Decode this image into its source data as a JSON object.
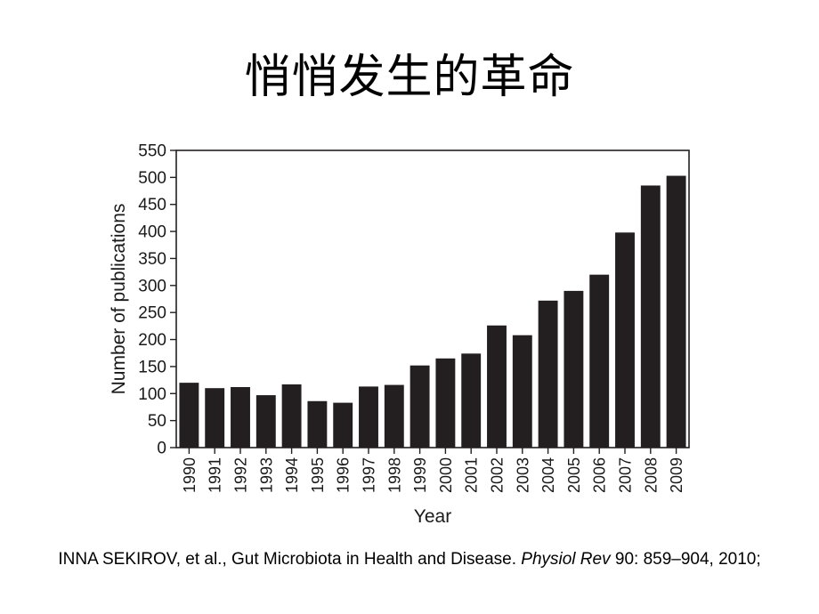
{
  "slide": {
    "title": "悄悄发生的革命"
  },
  "citation": {
    "prefix": "INNA SEKIROV, et al., Gut Microbiota in Health and Disease.",
    "journal": "Physiol Rev",
    "suffix": "90: 859–904, 2010;"
  },
  "colors": {
    "bar": "#231f20",
    "axis": "#231f20"
  },
  "chart_data": {
    "type": "bar",
    "title": "",
    "xlabel": "Year",
    "ylabel": "Number of publications",
    "ylim": [
      0,
      550
    ],
    "yticks": [
      0,
      50,
      100,
      150,
      200,
      250,
      300,
      350,
      400,
      450,
      500,
      550
    ],
    "categories": [
      "1990",
      "1991",
      "1992",
      "1993",
      "1994",
      "1995",
      "1996",
      "1997",
      "1998",
      "1999",
      "2000",
      "2001",
      "2002",
      "2003",
      "2004",
      "2005",
      "2006",
      "2007",
      "2008",
      "2009"
    ],
    "values": [
      120,
      110,
      112,
      97,
      117,
      86,
      83,
      113,
      116,
      152,
      165,
      174,
      226,
      208,
      272,
      290,
      320,
      398,
      485,
      503
    ]
  }
}
